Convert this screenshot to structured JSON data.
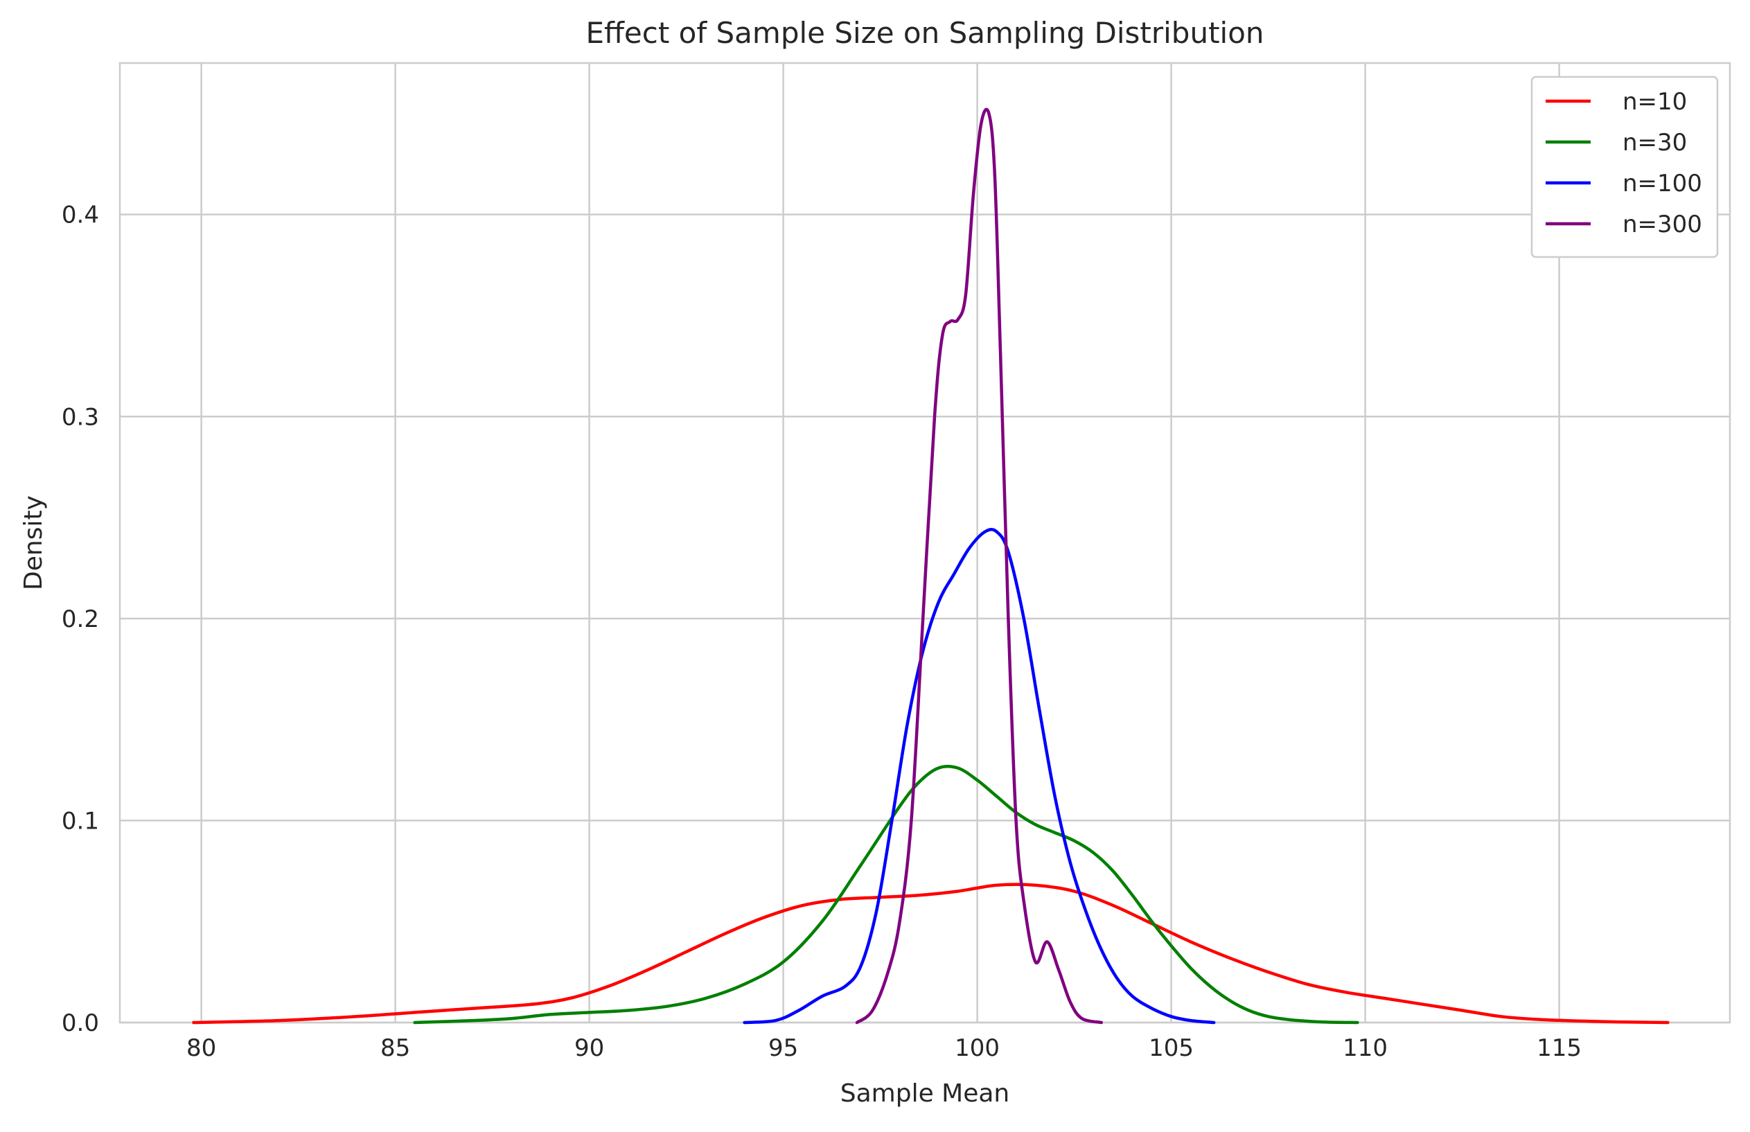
{
  "chart_data": {
    "type": "line",
    "title": "Effect of Sample Size on Sampling Distribution",
    "xlabel": "Sample Mean",
    "ylabel": "Density",
    "xlim": [
      77.9,
      119.4
    ],
    "ylim": [
      0,
      0.475
    ],
    "x_ticks": [
      80,
      85,
      90,
      95,
      100,
      105,
      110,
      115
    ],
    "x_tick_labels": [
      "80",
      "85",
      "90",
      "95",
      "100",
      "105",
      "110",
      "115"
    ],
    "y_ticks": [
      0.0,
      0.1,
      0.2,
      0.3,
      0.4
    ],
    "y_tick_labels": [
      "0.0",
      "0.1",
      "0.2",
      "0.3",
      "0.4"
    ],
    "grid": true,
    "legend_position": "top-right",
    "series": [
      {
        "name": "n=10",
        "color": "#ff0000",
        "x": [
          79.8,
          82,
          84,
          85.5,
          87,
          88.5,
          89.5,
          90.5,
          91.5,
          92.5,
          93.5,
          94.5,
          95.5,
          96.5,
          97.5,
          98.5,
          99.5,
          100.5,
          101.5,
          102.5,
          103.5,
          104.5,
          105.5,
          106.5,
          107.5,
          108.5,
          109.5,
          110.5,
          111.5,
          112.5,
          113.5,
          114.5,
          115.5,
          116.5,
          117.8
        ],
        "y": [
          0.0,
          0.001,
          0.003,
          0.005,
          0.007,
          0.009,
          0.012,
          0.018,
          0.026,
          0.035,
          0.044,
          0.052,
          0.058,
          0.061,
          0.062,
          0.063,
          0.065,
          0.068,
          0.068,
          0.065,
          0.058,
          0.049,
          0.04,
          0.032,
          0.025,
          0.019,
          0.015,
          0.012,
          0.009,
          0.006,
          0.003,
          0.0015,
          0.0008,
          0.0003,
          0.0
        ]
      },
      {
        "name": "n=30",
        "color": "#008000",
        "x": [
          85.5,
          87,
          88,
          89,
          90,
          91,
          92,
          93,
          94,
          95,
          96,
          97,
          98,
          98.5,
          99,
          99.5,
          100,
          100.5,
          101,
          101.5,
          102,
          102.5,
          103,
          103.5,
          104,
          104.5,
          105,
          105.5,
          106,
          106.5,
          107,
          107.5,
          108,
          108.5,
          109,
          109.8
        ],
        "y": [
          0.0,
          0.001,
          0.002,
          0.004,
          0.005,
          0.006,
          0.008,
          0.012,
          0.019,
          0.03,
          0.05,
          0.078,
          0.107,
          0.119,
          0.126,
          0.126,
          0.12,
          0.112,
          0.104,
          0.098,
          0.094,
          0.09,
          0.084,
          0.075,
          0.063,
          0.05,
          0.038,
          0.027,
          0.018,
          0.011,
          0.006,
          0.003,
          0.0015,
          0.0007,
          0.0002,
          0.0
        ]
      },
      {
        "name": "n=100",
        "color": "#0000ff",
        "x": [
          94,
          94.8,
          95.4,
          96,
          96.6,
          97,
          97.4,
          97.8,
          98.2,
          98.6,
          99,
          99.4,
          99.8,
          100.2,
          100.5,
          100.8,
          101.2,
          101.6,
          102,
          102.4,
          102.8,
          103.2,
          103.6,
          104,
          104.5,
          105,
          105.5,
          106.1
        ],
        "y": [
          0.0,
          0.001,
          0.006,
          0.013,
          0.018,
          0.028,
          0.055,
          0.1,
          0.148,
          0.184,
          0.208,
          0.222,
          0.235,
          0.243,
          0.243,
          0.233,
          0.2,
          0.155,
          0.112,
          0.079,
          0.055,
          0.036,
          0.022,
          0.013,
          0.007,
          0.003,
          0.001,
          0.0
        ]
      },
      {
        "name": "n=300",
        "color": "#800080",
        "x": [
          96.9,
          97.3,
          97.7,
          98,
          98.3,
          98.6,
          98.9,
          99.1,
          99.3,
          99.5,
          99.7,
          99.9,
          100.1,
          100.3,
          100.45,
          100.6,
          100.8,
          101,
          101.2,
          101.5,
          101.8,
          102.1,
          102.4,
          102.7,
          103.2
        ],
        "y": [
          0.0,
          0.006,
          0.025,
          0.05,
          0.1,
          0.2,
          0.3,
          0.34,
          0.347,
          0.348,
          0.36,
          0.41,
          0.445,
          0.45,
          0.42,
          0.33,
          0.2,
          0.1,
          0.06,
          0.03,
          0.04,
          0.026,
          0.01,
          0.002,
          0.0
        ]
      }
    ]
  }
}
